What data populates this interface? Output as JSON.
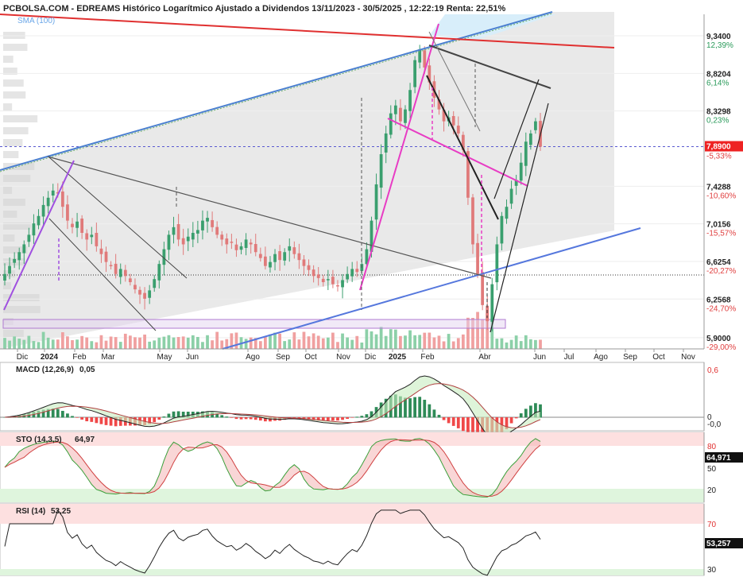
{
  "header": {
    "title": "PCBOLSA.COM - EDREAMS Histórico Logarítmico Ajustado a Dividendos 13/11/2023 - 30/5/2025 , 12:22:19 Renta: 22,51%",
    "sma_label": "SMA (100)"
  },
  "colors": {
    "up": "#3a9f6e",
    "down": "#e07a7a",
    "macd_up": "#2e8b57",
    "macd_down": "#f04848",
    "red_line": "#e03030",
    "blue_line": "#5577dd",
    "magenta": "#e83cc4",
    "purple": "#a050e0"
  },
  "chart_data": [
    {
      "type": "candlestick",
      "title": "PCBOLSA.COM - EDREAMS Histórico Logarítmico Ajustado a Dividendos 13/11/2023 - 30/5/2025 , 12:22:19 Renta: 22,51%",
      "scale": "log",
      "ylim": [
        5.8,
        9.65
      ],
      "x_tick_labels": [
        "Dic",
        "2024",
        "Feb",
        "Mar",
        "May",
        "Jun",
        "Ago",
        "Sep",
        "Oct",
        "Nov",
        "Dic",
        "2025",
        "Feb",
        "Abr",
        "Jun",
        "Jul",
        "Ago",
        "Sep",
        "Oct",
        "Nov"
      ],
      "y_ticks": [
        {
          "value": 9.34,
          "label": "9,3400",
          "pct": "12,39%"
        },
        {
          "value": 8.8204,
          "label": "8,8204",
          "pct": "6,14%"
        },
        {
          "value": 8.3298,
          "label": "8,3298",
          "pct": "0,23%"
        },
        {
          "value": 7.4288,
          "label": "7,4288",
          "pct": "-10,60%"
        },
        {
          "value": 7.0156,
          "label": "7,0156",
          "pct": "-15,57%"
        },
        {
          "value": 6.6254,
          "label": "6,6254",
          "pct": "-20,27%"
        },
        {
          "value": 6.2568,
          "label": "6,2568",
          "pct": "-24,70%"
        },
        {
          "value": 5.9,
          "label": "5,9000",
          "pct": "-29,00%"
        }
      ],
      "last_price": {
        "value": 7.89,
        "label": "7,8900",
        "pct": "-5,33%"
      },
      "support_level": 6.49,
      "closes": [
        6.5,
        6.58,
        6.65,
        6.72,
        6.8,
        6.9,
        7.02,
        7.1,
        7.22,
        7.3,
        7.38,
        7.35,
        7.2,
        7.05,
        6.98,
        7.04,
        6.92,
        6.85,
        6.9,
        6.78,
        6.7,
        6.62,
        6.58,
        6.5,
        6.55,
        6.48,
        6.42,
        6.35,
        6.3,
        6.26,
        6.34,
        6.45,
        6.6,
        6.75,
        6.9,
        6.98,
        6.85,
        6.8,
        6.88,
        6.92,
        6.95,
        7.05,
        7.08,
        6.98,
        6.9,
        6.85,
        6.8,
        6.82,
        6.74,
        6.78,
        6.85,
        6.8,
        6.72,
        6.66,
        6.58,
        6.62,
        6.7,
        6.64,
        6.72,
        6.78,
        6.7,
        6.64,
        6.58,
        6.54,
        6.48,
        6.46,
        6.42,
        6.45,
        6.4,
        6.38,
        6.44,
        6.5,
        6.55,
        6.52,
        6.6,
        6.75,
        7.05,
        7.45,
        7.8,
        8.05,
        8.3,
        8.4,
        8.2,
        8.35,
        8.6,
        9.0,
        9.15,
        8.9,
        8.7,
        8.5,
        8.35,
        8.2,
        8.25,
        8.15,
        8.05,
        7.85,
        7.3,
        6.8,
        6.5,
        6.2,
        6.05,
        6.4,
        6.8,
        7.1,
        7.2,
        7.4,
        7.5,
        7.7,
        7.95,
        8.05,
        8.2,
        7.89
      ],
      "volume_max": 400000
    },
    {
      "type": "line",
      "title": "MACD (12,26,9)",
      "value_label": "0,05",
      "y_tick_labels": [
        "0,6",
        "0",
        "-0,0"
      ]
    },
    {
      "type": "line",
      "title": "STO (14,3,5)",
      "value_label": "64,97",
      "last_label": "64,971",
      "y_tick_labels": [
        "80",
        "50",
        "20"
      ]
    },
    {
      "type": "line",
      "title": "RSI (14)",
      "value_label": "53,25",
      "last_label": "53,257",
      "y_tick_labels": [
        "70",
        "30"
      ]
    }
  ]
}
